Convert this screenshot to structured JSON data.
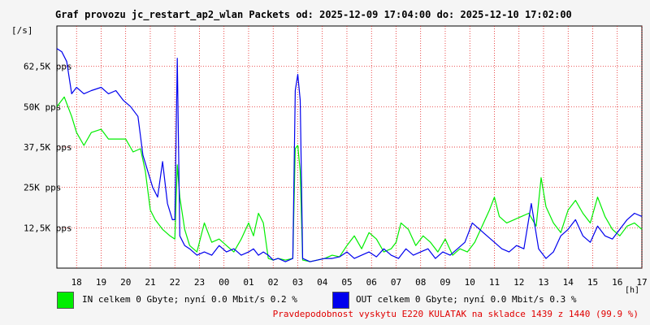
{
  "title": "Graf provozu jc_restart_ap2_wlan Packets od: 2025-12-09 17:04:00 do: 2025-12-10 17:02:00",
  "footer": "Pravdepodobnost vyskytu E220 KULATAK na skladce 1439 z 1440 (99.9 %)",
  "chart_data": {
    "type": "line",
    "ylabel": "[/s]",
    "xlabel": "[h]",
    "ylim": [
      0,
      75000
    ],
    "xlim": [
      17.2,
      41.0
    ],
    "grid": true,
    "background": "#ffffff",
    "grid_color": "#e00000",
    "y_ticks": [
      12500,
      25000,
      37500,
      50000,
      62500
    ],
    "y_tick_labels": [
      "12,5K pps",
      "25K pps",
      "37,5K pps",
      "50K pps",
      "62,5K pps"
    ],
    "x_ticks": [
      18,
      19,
      20,
      21,
      22,
      23,
      24,
      25,
      26,
      27,
      28,
      29,
      30,
      31,
      32,
      33,
      34,
      35,
      36,
      37,
      38,
      39,
      40,
      41
    ],
    "x_tick_labels": [
      "18",
      "19",
      "20",
      "21",
      "22",
      "23",
      "00",
      "01",
      "02",
      "03",
      "04",
      "05",
      "06",
      "07",
      "08",
      "09",
      "10",
      "11",
      "12",
      "13",
      "14",
      "15",
      "16",
      "17"
    ],
    "series": [
      {
        "name": "IN",
        "color": "#00ee00",
        "legend": "IN celkem 0 Gbyte; nyní   0.0 Mbit/s 0.2 %",
        "x": [
          17.2,
          17.5,
          17.8,
          18.0,
          18.3,
          18.6,
          19.0,
          19.3,
          19.6,
          20.0,
          20.3,
          20.6,
          20.8,
          21.0,
          21.2,
          21.5,
          21.8,
          22.0,
          22.1,
          22.2,
          22.4,
          22.6,
          22.9,
          23.2,
          23.5,
          23.8,
          24.1,
          24.4,
          24.7,
          25.0,
          25.2,
          25.4,
          25.6,
          25.8,
          26.0,
          26.2,
          26.5,
          26.8,
          26.9,
          27.0,
          27.1,
          27.2,
          27.5,
          27.8,
          28.1,
          28.4,
          28.7,
          29.0,
          29.3,
          29.6,
          29.9,
          30.2,
          30.5,
          30.8,
          31.0,
          31.2,
          31.5,
          31.8,
          32.1,
          32.4,
          32.7,
          33.0,
          33.3,
          33.6,
          33.9,
          34.2,
          34.5,
          34.8,
          35.0,
          35.2,
          35.5,
          35.8,
          36.1,
          36.4,
          36.7,
          36.9,
          37.1,
          37.4,
          37.7,
          38.0,
          38.3,
          38.6,
          38.9,
          39.2,
          39.5,
          39.8,
          40.1,
          40.4,
          40.7,
          41.0
        ],
        "y": [
          50000,
          53000,
          47000,
          42000,
          38000,
          42000,
          43000,
          40000,
          40000,
          40000,
          36000,
          37000,
          30000,
          18000,
          15000,
          12000,
          10000,
          9000,
          32000,
          22000,
          12000,
          7000,
          5000,
          14000,
          8000,
          9000,
          7000,
          5000,
          9000,
          14000,
          10000,
          17000,
          14000,
          3000,
          2500,
          3000,
          2500,
          3000,
          37000,
          38000,
          30000,
          2500,
          2000,
          2500,
          3000,
          4000,
          3500,
          7000,
          10000,
          6000,
          11000,
          9000,
          5000,
          6000,
          8000,
          14000,
          12000,
          7000,
          10000,
          8000,
          5000,
          9000,
          4000,
          6000,
          5000,
          8000,
          13000,
          18000,
          22000,
          16000,
          14000,
          15000,
          16000,
          17000,
          13000,
          28000,
          19000,
          14000,
          11000,
          18000,
          21000,
          17000,
          14000,
          22000,
          16000,
          12000,
          10000,
          13000,
          14000,
          12000
        ]
      },
      {
        "name": "OUT",
        "color": "#0000ee",
        "legend": "OUT celkem 0 Gbyte; nyní   0.0 Mbit/s 0.3 %",
        "x": [
          17.2,
          17.4,
          17.6,
          17.8,
          18.0,
          18.3,
          18.6,
          19.0,
          19.3,
          19.6,
          19.9,
          20.2,
          20.5,
          20.7,
          20.9,
          21.1,
          21.3,
          21.5,
          21.7,
          21.9,
          22.0,
          22.1,
          22.2,
          22.4,
          22.6,
          22.9,
          23.2,
          23.5,
          23.8,
          24.1,
          24.4,
          24.7,
          25.0,
          25.2,
          25.4,
          25.6,
          25.8,
          26.0,
          26.2,
          26.5,
          26.8,
          26.9,
          27.0,
          27.1,
          27.2,
          27.5,
          27.8,
          28.1,
          28.4,
          28.7,
          29.0,
          29.3,
          29.6,
          29.9,
          30.2,
          30.5,
          30.8,
          31.1,
          31.4,
          31.7,
          32.0,
          32.3,
          32.6,
          32.9,
          33.2,
          33.5,
          33.8,
          34.1,
          34.4,
          34.7,
          35.0,
          35.3,
          35.6,
          35.9,
          36.2,
          36.5,
          36.8,
          37.1,
          37.4,
          37.7,
          38.0,
          38.3,
          38.6,
          38.9,
          39.2,
          39.5,
          39.8,
          40.1,
          40.4,
          40.7,
          41.0
        ],
        "y": [
          68000,
          67000,
          64000,
          54000,
          56000,
          54000,
          55000,
          56000,
          54000,
          55000,
          52000,
          50000,
          47000,
          35000,
          30000,
          25000,
          22000,
          33000,
          20000,
          15000,
          15000,
          65000,
          10000,
          7000,
          6000,
          4000,
          5000,
          4000,
          7000,
          5000,
          6000,
          4000,
          5000,
          6000,
          4000,
          5000,
          4000,
          2500,
          3000,
          2000,
          3000,
          55000,
          60000,
          52000,
          3000,
          2000,
          2500,
          3000,
          3000,
          3500,
          5000,
          3000,
          4000,
          5000,
          3500,
          6000,
          4000,
          3000,
          6000,
          4000,
          5000,
          6000,
          3000,
          5000,
          4000,
          6000,
          8000,
          14000,
          12000,
          10000,
          8000,
          6000,
          5000,
          7000,
          6000,
          20000,
          6000,
          3000,
          5000,
          10000,
          12000,
          15000,
          10000,
          8000,
          13000,
          10000,
          9000,
          12000,
          15000,
          17000,
          16000
        ]
      }
    ]
  }
}
